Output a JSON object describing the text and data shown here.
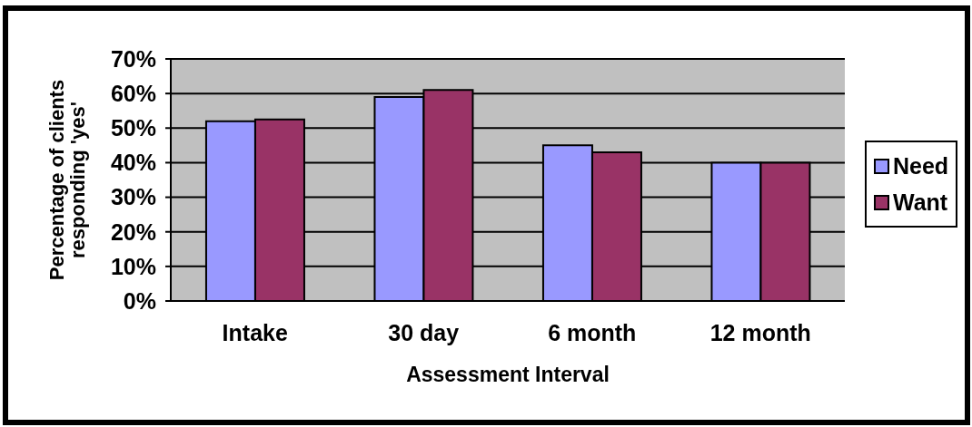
{
  "chart_data": {
    "type": "bar",
    "xlabel": "Assessment Interval",
    "ylabel": "Percentage of clients responding 'yes'",
    "categories": [
      "Intake",
      "30 day",
      "6 month",
      "12 month"
    ],
    "series": [
      {
        "name": "Need",
        "color": "#9999ff",
        "values": [
          52,
          59,
          45,
          40
        ]
      },
      {
        "name": "Want",
        "color": "#993366",
        "values": [
          52.5,
          61,
          43,
          40
        ]
      }
    ],
    "ylim": [
      0,
      70
    ],
    "yticks": [
      {
        "value": 0,
        "label": "0%"
      },
      {
        "value": 10,
        "label": "10%"
      },
      {
        "value": 20,
        "label": "20%"
      },
      {
        "value": 30,
        "label": "30%"
      },
      {
        "value": 40,
        "label": "40%"
      },
      {
        "value": 50,
        "label": "50%"
      },
      {
        "value": 60,
        "label": "60%"
      },
      {
        "value": 70,
        "label": "70%"
      }
    ],
    "grid": "y",
    "legend": "right"
  }
}
